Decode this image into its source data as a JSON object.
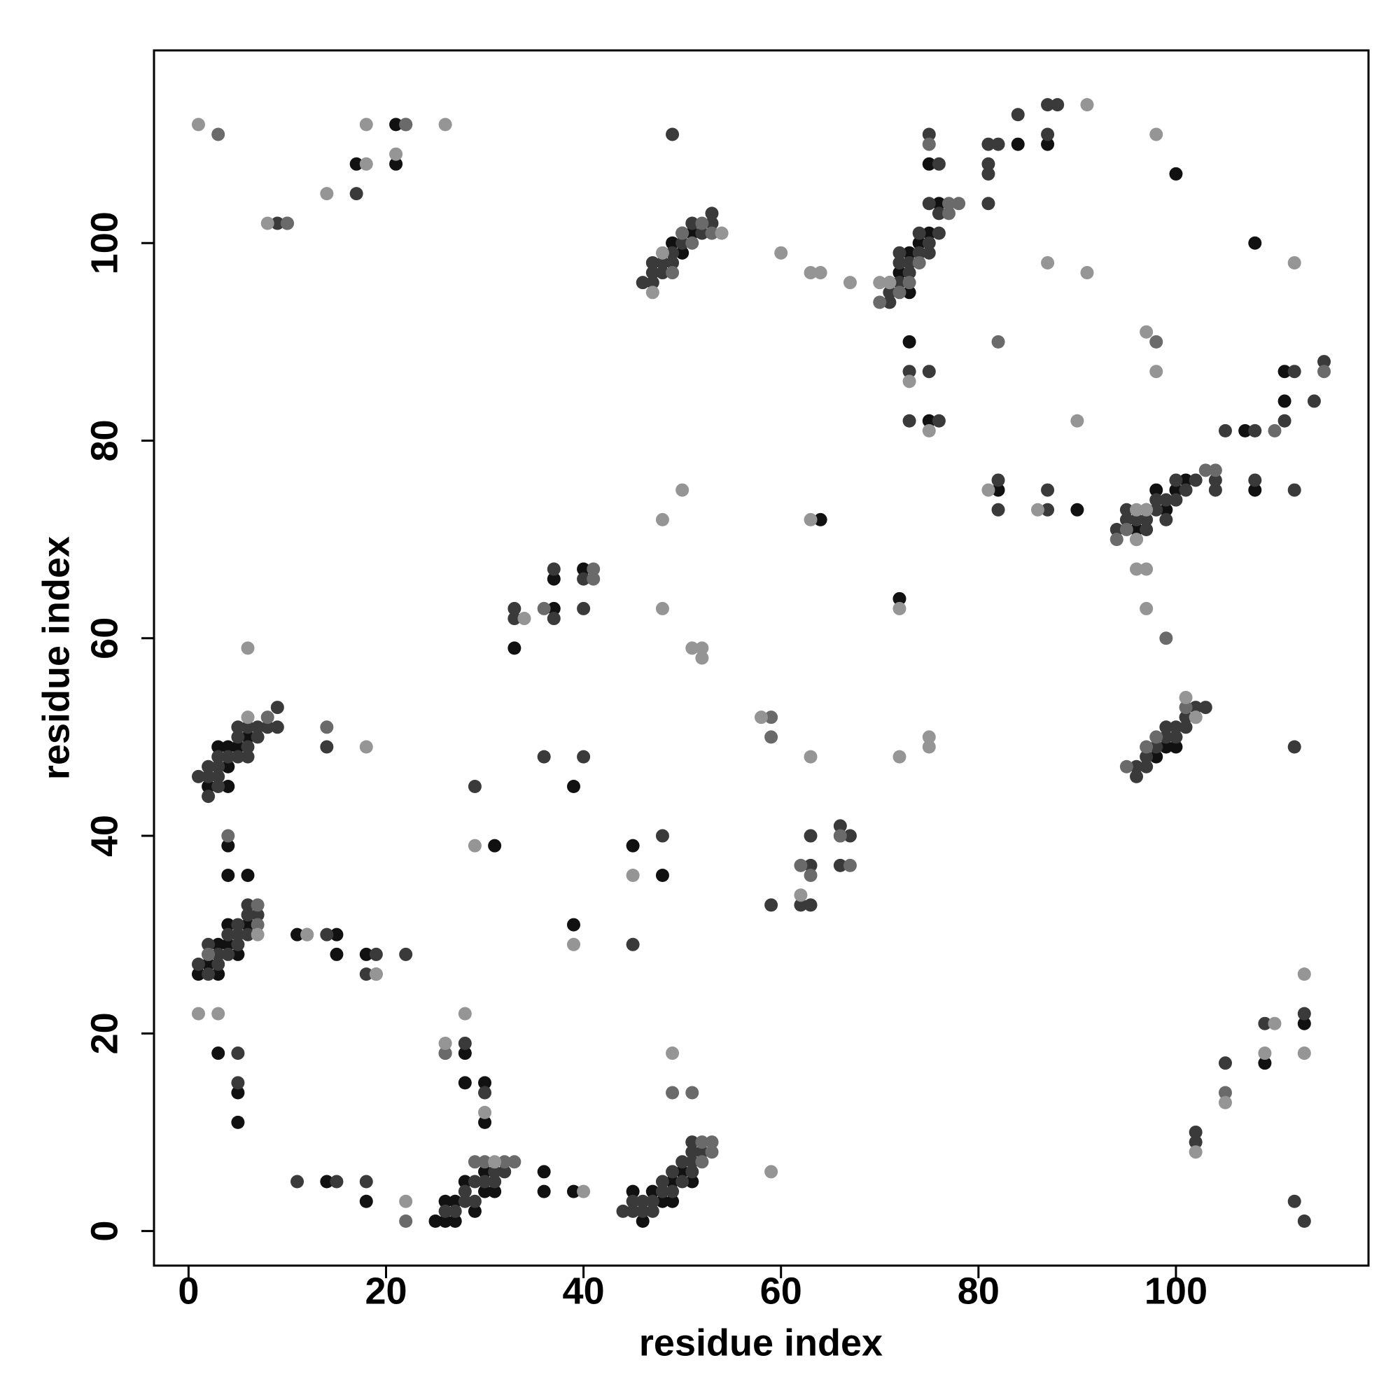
{
  "chart_data": {
    "type": "scatter",
    "xlabel": "residue index",
    "ylabel": "residue index",
    "xlim": [
      -3.5,
      119.5
    ],
    "ylim": [
      -3.5,
      119.5
    ],
    "xticks": [
      0,
      20,
      40,
      60,
      80,
      100
    ],
    "yticks": [
      0,
      20,
      40,
      60,
      80,
      100
    ],
    "series": [
      {
        "color": "#111111",
        "x": [
          25,
          26,
          27,
          26,
          27,
          28,
          29,
          30,
          31,
          30,
          45,
          47,
          46,
          48,
          49,
          50,
          51,
          49,
          36,
          36,
          18,
          14,
          39,
          5,
          5,
          3,
          4,
          6,
          4,
          11,
          15,
          15,
          18,
          28,
          30,
          30,
          28,
          31,
          39,
          39,
          45,
          48,
          33,
          37,
          37,
          40,
          64,
          72,
          73,
          75,
          75,
          84,
          87,
          100,
          108,
          90,
          82,
          108,
          111,
          111,
          107,
          109,
          113,
          21,
          17,
          21,
          1,
          2,
          3,
          4,
          4,
          5,
          6,
          3,
          3,
          4,
          4,
          4,
          5,
          6,
          2,
          49,
          50,
          51,
          72,
          73,
          71,
          73,
          74,
          75,
          76,
          96,
          97,
          98,
          99,
          100,
          101,
          99,
          100,
          98
        ],
        "values": [
          1,
          1,
          1,
          3,
          3,
          5,
          2,
          4,
          4,
          6,
          4,
          4,
          1,
          3,
          3,
          6,
          5,
          5,
          6,
          4,
          3,
          5,
          4,
          14,
          11,
          18,
          36,
          36,
          39,
          30,
          28,
          30,
          28,
          15,
          15,
          11,
          18,
          39,
          45,
          31,
          39,
          36,
          59,
          66,
          63,
          67,
          72,
          64,
          90,
          108,
          82,
          110,
          110,
          107,
          100,
          73,
          75,
          75,
          84,
          87,
          81,
          17,
          21,
          112,
          108,
          108,
          26,
          27,
          29,
          31,
          29,
          28,
          31,
          26,
          49,
          47,
          45,
          49,
          49,
          50,
          45,
          100,
          99,
          101,
          97,
          95,
          96,
          99,
          100,
          101,
          104,
          71,
          73,
          75,
          73,
          75,
          76,
          49,
          49,
          48
        ]
      },
      {
        "color": "#3a3a3a",
        "x": [
          26,
          27,
          28,
          29,
          29,
          28,
          31,
          32,
          30,
          31,
          44,
          45,
          46,
          45,
          46,
          47,
          47,
          48,
          49,
          50,
          48,
          49,
          51,
          50,
          51,
          51,
          51,
          52,
          11,
          18,
          15,
          5,
          5,
          28,
          26,
          30,
          29,
          36,
          40,
          45,
          48,
          33,
          33,
          37,
          37,
          40,
          40,
          63,
          62,
          63,
          59,
          66,
          66,
          67,
          66,
          63,
          1,
          2,
          2,
          2,
          3,
          3,
          4,
          4,
          5,
          5,
          5,
          6,
          6,
          6,
          7,
          1,
          2,
          2,
          2,
          3,
          3,
          3,
          3,
          4,
          5,
          5,
          5,
          6,
          6,
          6,
          7,
          7,
          8,
          9,
          9,
          14,
          12,
          14,
          19,
          18,
          22,
          46,
          47,
          47,
          47,
          48,
          48,
          49,
          49,
          50,
          50,
          51,
          52,
          53,
          53,
          49,
          71,
          71,
          72,
          72,
          72,
          73,
          73,
          74,
          74,
          75,
          75,
          76,
          76,
          75,
          76,
          75,
          73,
          73,
          75,
          76,
          81,
          82,
          81,
          81,
          81,
          84,
          87,
          87,
          88,
          17,
          9,
          10,
          22,
          94,
          95,
          95,
          96,
          97,
          97,
          98,
          98,
          99,
          99,
          100,
          100,
          101,
          102,
          104,
          104,
          82,
          82,
          87,
          87,
          105,
          108,
          108,
          111,
          112,
          112,
          114,
          115,
          96,
          96,
          97,
          97,
          98,
          99,
          99,
          100,
          100,
          101,
          101,
          102,
          103,
          112,
          102,
          105,
          109,
          113,
          112,
          113,
          102
        ],
        "values": [
          2,
          2,
          3,
          5,
          3,
          4,
          5,
          6,
          5,
          6,
          2,
          2,
          2,
          3,
          3,
          3,
          2,
          4,
          4,
          5,
          5,
          6,
          6,
          7,
          7,
          8,
          9,
          8,
          5,
          5,
          5,
          18,
          15,
          19,
          18,
          14,
          45,
          48,
          48,
          29,
          40,
          62,
          63,
          62,
          67,
          63,
          66,
          37,
          33,
          33,
          33,
          41,
          40,
          40,
          37,
          40,
          27,
          26,
          28,
          29,
          27,
          28,
          28,
          30,
          29,
          30,
          31,
          30,
          32,
          33,
          32,
          46,
          44,
          46,
          47,
          45,
          46,
          47,
          48,
          48,
          48,
          50,
          51,
          48,
          49,
          51,
          50,
          51,
          51,
          51,
          53,
          49,
          30,
          30,
          28,
          26,
          28,
          96,
          96,
          97,
          98,
          97,
          98,
          98,
          99,
          100,
          101,
          102,
          101,
          102,
          103,
          111,
          94,
          95,
          96,
          98,
          99,
          97,
          98,
          99,
          101,
          99,
          100,
          101,
          103,
          104,
          108,
          111,
          87,
          82,
          87,
          82,
          110,
          110,
          108,
          107,
          104,
          113,
          114,
          111,
          114,
          105,
          102,
          102,
          112,
          71,
          72,
          73,
          72,
          71,
          72,
          73,
          74,
          72,
          74,
          74,
          76,
          75,
          76,
          76,
          75,
          76,
          73,
          73,
          75,
          81,
          81,
          76,
          82,
          87,
          75,
          84,
          88,
          46,
          47,
          47,
          48,
          49,
          50,
          51,
          50,
          51,
          51,
          52,
          53,
          53,
          49,
          10,
          17,
          21,
          22,
          3,
          1,
          9
        ]
      },
      {
        "color": "#6a6a6a",
        "x": [
          33,
          32,
          30,
          29,
          52,
          53,
          52,
          53,
          8,
          7,
          2,
          19,
          49,
          51,
          26,
          4,
          7,
          62,
          67,
          59,
          59,
          36,
          41,
          41,
          63,
          66,
          72,
          73,
          74,
          75,
          77,
          77,
          78,
          70,
          82,
          98,
          104,
          103,
          102,
          101,
          95,
          97,
          98,
          110,
          115,
          94,
          95,
          96,
          49,
          50,
          52,
          53,
          51,
          105,
          10,
          14,
          22,
          3,
          22,
          99
        ],
        "values": [
          7,
          7,
          7,
          7,
          9,
          9,
          7,
          8,
          52,
          33,
          28,
          26,
          14,
          14,
          18,
          40,
          31,
          37,
          37,
          52,
          50,
          63,
          66,
          67,
          36,
          40,
          95,
          96,
          98,
          110,
          103,
          104,
          104,
          94,
          90,
          90,
          77,
          77,
          52,
          53,
          47,
          49,
          50,
          81,
          87,
          70,
          71,
          70,
          97,
          101,
          102,
          101,
          100,
          14,
          102,
          51,
          112,
          111,
          1,
          60
        ]
      },
      {
        "color": "#959595",
        "x": [
          1,
          3,
          1,
          6,
          18,
          29,
          45,
          48,
          48,
          52,
          58,
          63,
          62,
          72,
          72,
          75,
          26,
          18,
          18,
          21,
          8,
          14,
          22,
          40,
          59,
          26,
          28,
          30,
          49,
          87,
          91,
          90,
          97,
          98,
          112,
          98,
          91,
          96,
          97,
          97,
          113,
          113,
          105,
          102,
          110,
          63,
          12,
          19,
          6,
          7,
          39,
          50,
          51,
          52,
          60,
          63,
          64,
          67,
          73,
          75,
          81,
          86,
          96,
          97,
          101,
          102,
          47,
          48,
          54,
          71,
          70,
          96,
          109,
          75,
          31,
          34
        ],
        "values": [
          22,
          22,
          112,
          59,
          49,
          39,
          36,
          72,
          63,
          58,
          52,
          48,
          34,
          63,
          48,
          50,
          112,
          112,
          108,
          109,
          102,
          105,
          3,
          4,
          6,
          19,
          22,
          12,
          18,
          98,
          97,
          82,
          91,
          87,
          98,
          111,
          114,
          67,
          67,
          63,
          18,
          26,
          13,
          8,
          21,
          72,
          30,
          26,
          52,
          30,
          29,
          75,
          59,
          59,
          99,
          97,
          97,
          96,
          86,
          81,
          75,
          73,
          73,
          73,
          54,
          52,
          95,
          99,
          101,
          96,
          96,
          70,
          18,
          49,
          7,
          62
        ]
      }
    ]
  }
}
